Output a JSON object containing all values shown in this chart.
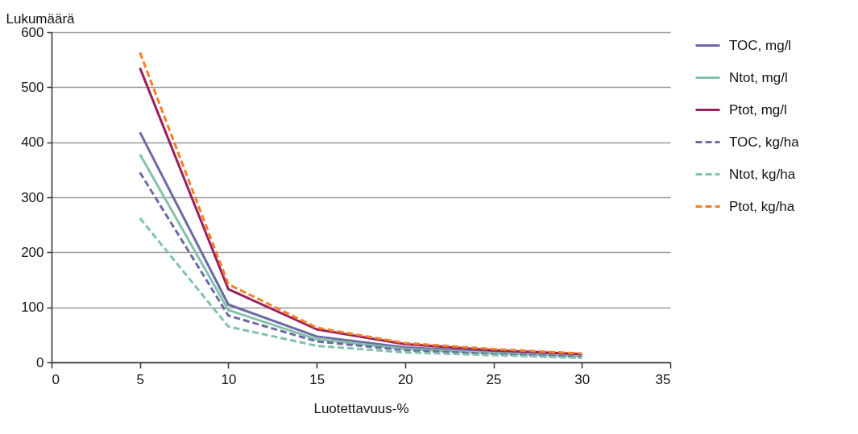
{
  "chart_data": {
    "type": "line",
    "xlabel": "Luotettavuus-%",
    "ylabel": "Lukumäärä",
    "x": [
      5,
      10,
      15,
      20,
      25,
      30
    ],
    "xlim": [
      0,
      35
    ],
    "xticks": [
      0,
      5,
      10,
      15,
      20,
      25,
      30,
      35
    ],
    "ylim": [
      0,
      600
    ],
    "yticks": [
      0,
      100,
      200,
      300,
      400,
      500,
      600
    ],
    "grid": "y",
    "legend": "right",
    "series": [
      {
        "name": "TOC, mg/l",
        "color": "#6b6aa3",
        "line_style": "solid",
        "values": [
          418,
          105,
          47,
          27,
          19,
          13
        ]
      },
      {
        "name": "Ntot, mg/l",
        "color": "#84c1ad",
        "line_style": "solid",
        "values": [
          378,
          95,
          42,
          24,
          17,
          11
        ]
      },
      {
        "name": "Ptot, mg/l",
        "color": "#9b1f5f",
        "line_style": "solid",
        "values": [
          535,
          133,
          60,
          33,
          22,
          15
        ]
      },
      {
        "name": "TOC, kg/ha",
        "color": "#6b6aa3",
        "line_style": "dashed",
        "values": [
          345,
          85,
          38,
          22,
          15,
          10
        ]
      },
      {
        "name": "Ntot, kg/ha",
        "color": "#84c1ad",
        "line_style": "dashed",
        "values": [
          262,
          65,
          30,
          18,
          13,
          8
        ]
      },
      {
        "name": "Ptot, kg/ha",
        "color": "#f57f20",
        "line_style": "dashed",
        "values": [
          563,
          142,
          63,
          35,
          24,
          16
        ]
      }
    ]
  }
}
